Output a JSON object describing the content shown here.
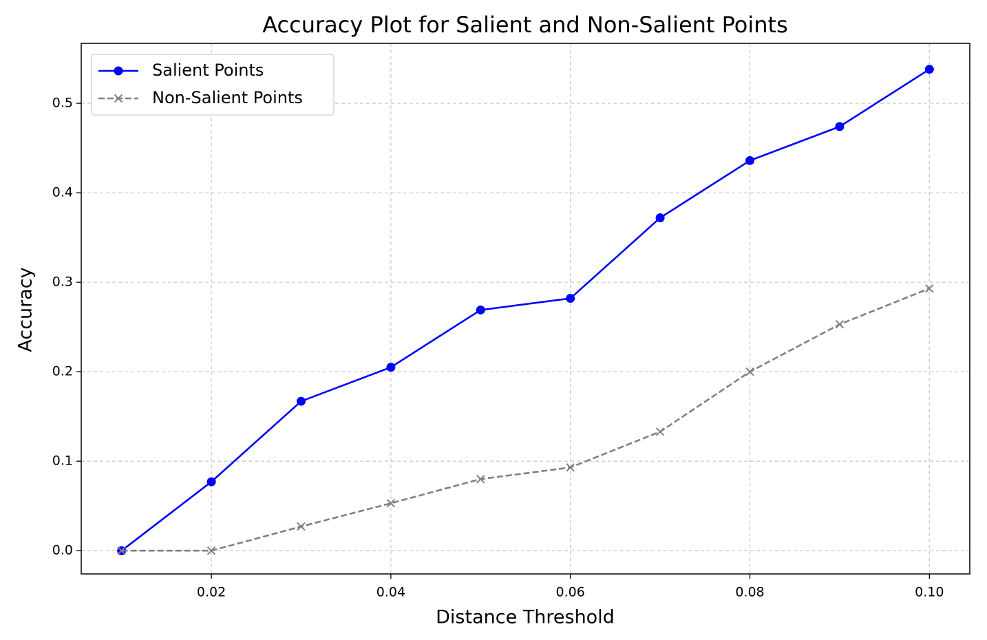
{
  "chart_data": {
    "type": "line",
    "title": "Accuracy Plot for Salient and Non-Salient Points",
    "x_label": "Distance Threshold",
    "y_label": "Accuracy",
    "x": [
      0.01,
      0.02,
      0.03,
      0.04,
      0.05,
      0.06,
      0.07,
      0.08,
      0.09,
      0.1
    ],
    "series": [
      {
        "name": "Salient Points",
        "color": "#0000ff",
        "marker": "o",
        "linestyle": "solid",
        "values": [
          0,
          0.077,
          0.167,
          0.205,
          0.269,
          0.282,
          0.372,
          0.436,
          0.474,
          0.538
        ]
      },
      {
        "name": "Non-Salient Points",
        "color": "#808080",
        "marker": "x",
        "linestyle": "dashed",
        "values": [
          0,
          0,
          0.027,
          0.053,
          0.08,
          0.093,
          0.133,
          0.2,
          0.253,
          0.293
        ]
      }
    ],
    "xlim": [
      0.0055,
      0.1045
    ],
    "xticks": [
      0.02,
      0.04,
      0.06,
      0.08,
      {
        "value": 0.1,
        "label": "0.10"
      }
    ],
    "ylim": [
      -0.026,
      0.567
    ],
    "yticks": [
      {
        "value": 0,
        "label": "0.0"
      },
      0.1,
      0.2,
      0.3,
      0.4,
      0.5
    ],
    "grid": true,
    "legend": "upper left"
  }
}
